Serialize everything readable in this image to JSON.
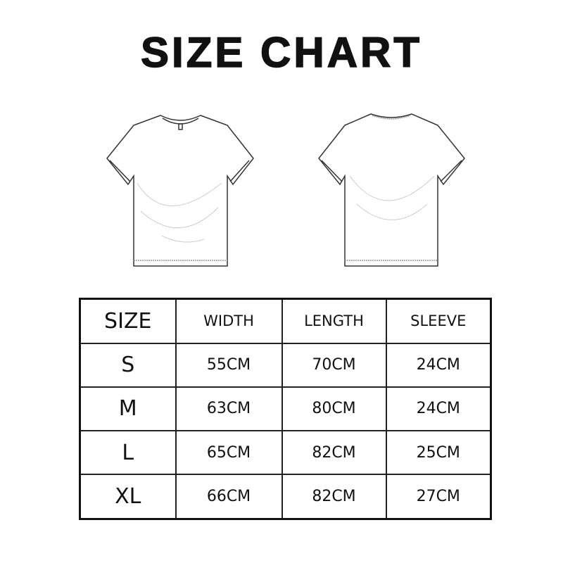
{
  "title": "SIZE CHART",
  "illustrations": {
    "front": "t-shirt-front",
    "back": "t-shirt-back"
  },
  "table": {
    "headers": [
      "SIZE",
      "WIDTH",
      "LENGTH",
      "SLEEVE"
    ],
    "rows": [
      [
        "S",
        "55CM",
        "70CM",
        "24CM"
      ],
      [
        "M",
        "63CM",
        "80CM",
        "24CM"
      ],
      [
        "L",
        "65CM",
        "82CM",
        "25CM"
      ],
      [
        "XL",
        "66CM",
        "82CM",
        "27CM"
      ]
    ]
  }
}
